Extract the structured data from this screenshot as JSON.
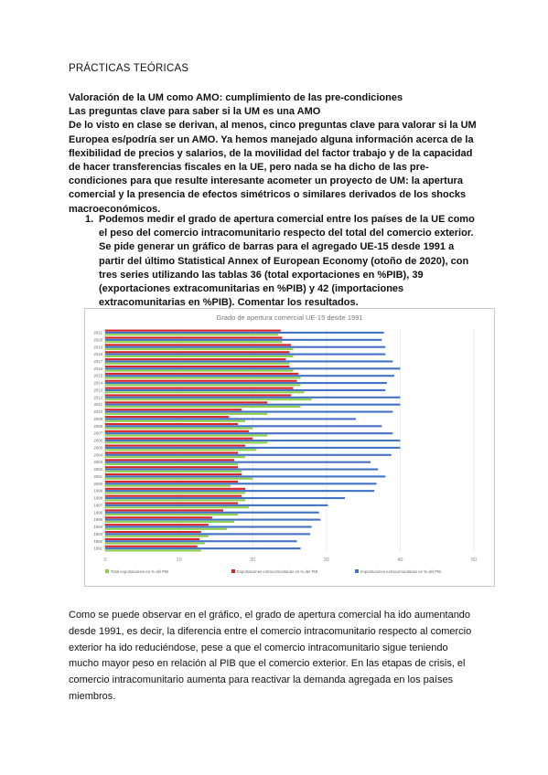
{
  "document": {
    "title": "PRÁCTICAS TEÓRICAS",
    "heading1": "Valoración de la UM como AMO: cumplimiento de las pre-condiciones",
    "heading2": "Las preguntas clave para saber si la UM es una AMO",
    "intro": "De lo visto en clase se derivan, al menos, cinco preguntas clave para valorar si la UM Europea es/podría ser un AMO. Ya hemos manejado alguna información acerca de la flexibilidad de precios y salarios, de la movilidad del factor trabajo y de la capacidad de hacer transferencias fiscales en la UE, pero nada se ha dicho de las pre-condiciones para que resulte interesante acometer un proyecto de UM: la apertura comercial y la presencia de efectos simétricos o similares derivados de los shocks macroeconómicos.",
    "question_number": "1.",
    "question_text": "Podemos medir el grado de apertura comercial entre los países de la UE como el peso del comercio intracomunitario respecto del total del comercio exterior. Se pide generar un gráfico de barras para el agregado UE-15 desde 1991 a partir del último Statistical Annex of European Economy (otoño de 2020), con tres series utilizando las tablas 36 (total exportaciones en %PIB), 39 (exportaciones extracomunitarias en %PIB) y 42 (importaciones extracomunitarias en %PIB). Comentar los resultados.",
    "comment": "Como se puede observar en el gráfico, el grado de apertura comercial ha ido aumentando desde 1991, es decir, la diferencia entre el comercio intracomunitario respecto al comercio exterior ha ido reduciéndose, pese a que el comercio intracomunitario sigue teniendo mucho mayor peso en relación al PIB que el comercio exterior. En las etapas de crisis, el comercio intracomunitario aumenta para reactivar la demanda agregada en los países miembros."
  },
  "chart_data": {
    "type": "bar",
    "orientation": "horizontal",
    "title": "Grado de apertura comercial UE-15 desde 1991",
    "categories": [
      "1991",
      "1992",
      "1993",
      "1994",
      "1995",
      "1996",
      "1997",
      "1998",
      "1999",
      "2000",
      "2001",
      "2002",
      "2003",
      "2004",
      "2005",
      "2006",
      "2007",
      "2008",
      "2009",
      "2010",
      "2011",
      "2012",
      "2013",
      "2014",
      "2015",
      "2016",
      "2017",
      "2018",
      "2019",
      "2020",
      "2021"
    ],
    "x_ticks": [
      "0",
      "10",
      "20",
      "30",
      "40",
      "50"
    ],
    "xlim": [
      0,
      50
    ],
    "legend_position": "bottom",
    "series": [
      {
        "name": "Importaciones extracomunitarias en % del PIB",
        "color": "#4472c4",
        "values": [
          26.5,
          26,
          27.8,
          28,
          29.2,
          29,
          30.2,
          32.5,
          36.5,
          36.8,
          38,
          37,
          36,
          38.8,
          40,
          40,
          39,
          37.5,
          34,
          39,
          40,
          40,
          38,
          38.2,
          39.2,
          40,
          39,
          38,
          38,
          37.5,
          37.8
        ]
      },
      {
        "name": "Exportaciones extracomunitarias en % del PIB",
        "color": "#d62728",
        "values": [
          12.5,
          12.8,
          13,
          14,
          14.5,
          16,
          18,
          18.5,
          19,
          18,
          18.5,
          18,
          17.5,
          18,
          19,
          20,
          19.5,
          18,
          16.8,
          18.5,
          22,
          25.2,
          25.5,
          26,
          26.2,
          25,
          24.5,
          25,
          25.2,
          24,
          23.8
        ]
      },
      {
        "name": "Total exportaciones en % del PIB",
        "color": "#8fd14f",
        "values": [
          13,
          13.5,
          14,
          16.5,
          17.5,
          18,
          19.5,
          19,
          19,
          17,
          20,
          18.5,
          18,
          19,
          20.5,
          22,
          22,
          20,
          19,
          22,
          26.5,
          28,
          27,
          26.5,
          26.5,
          25.5,
          25,
          25.5,
          25.5,
          24,
          23.5
        ]
      }
    ]
  }
}
